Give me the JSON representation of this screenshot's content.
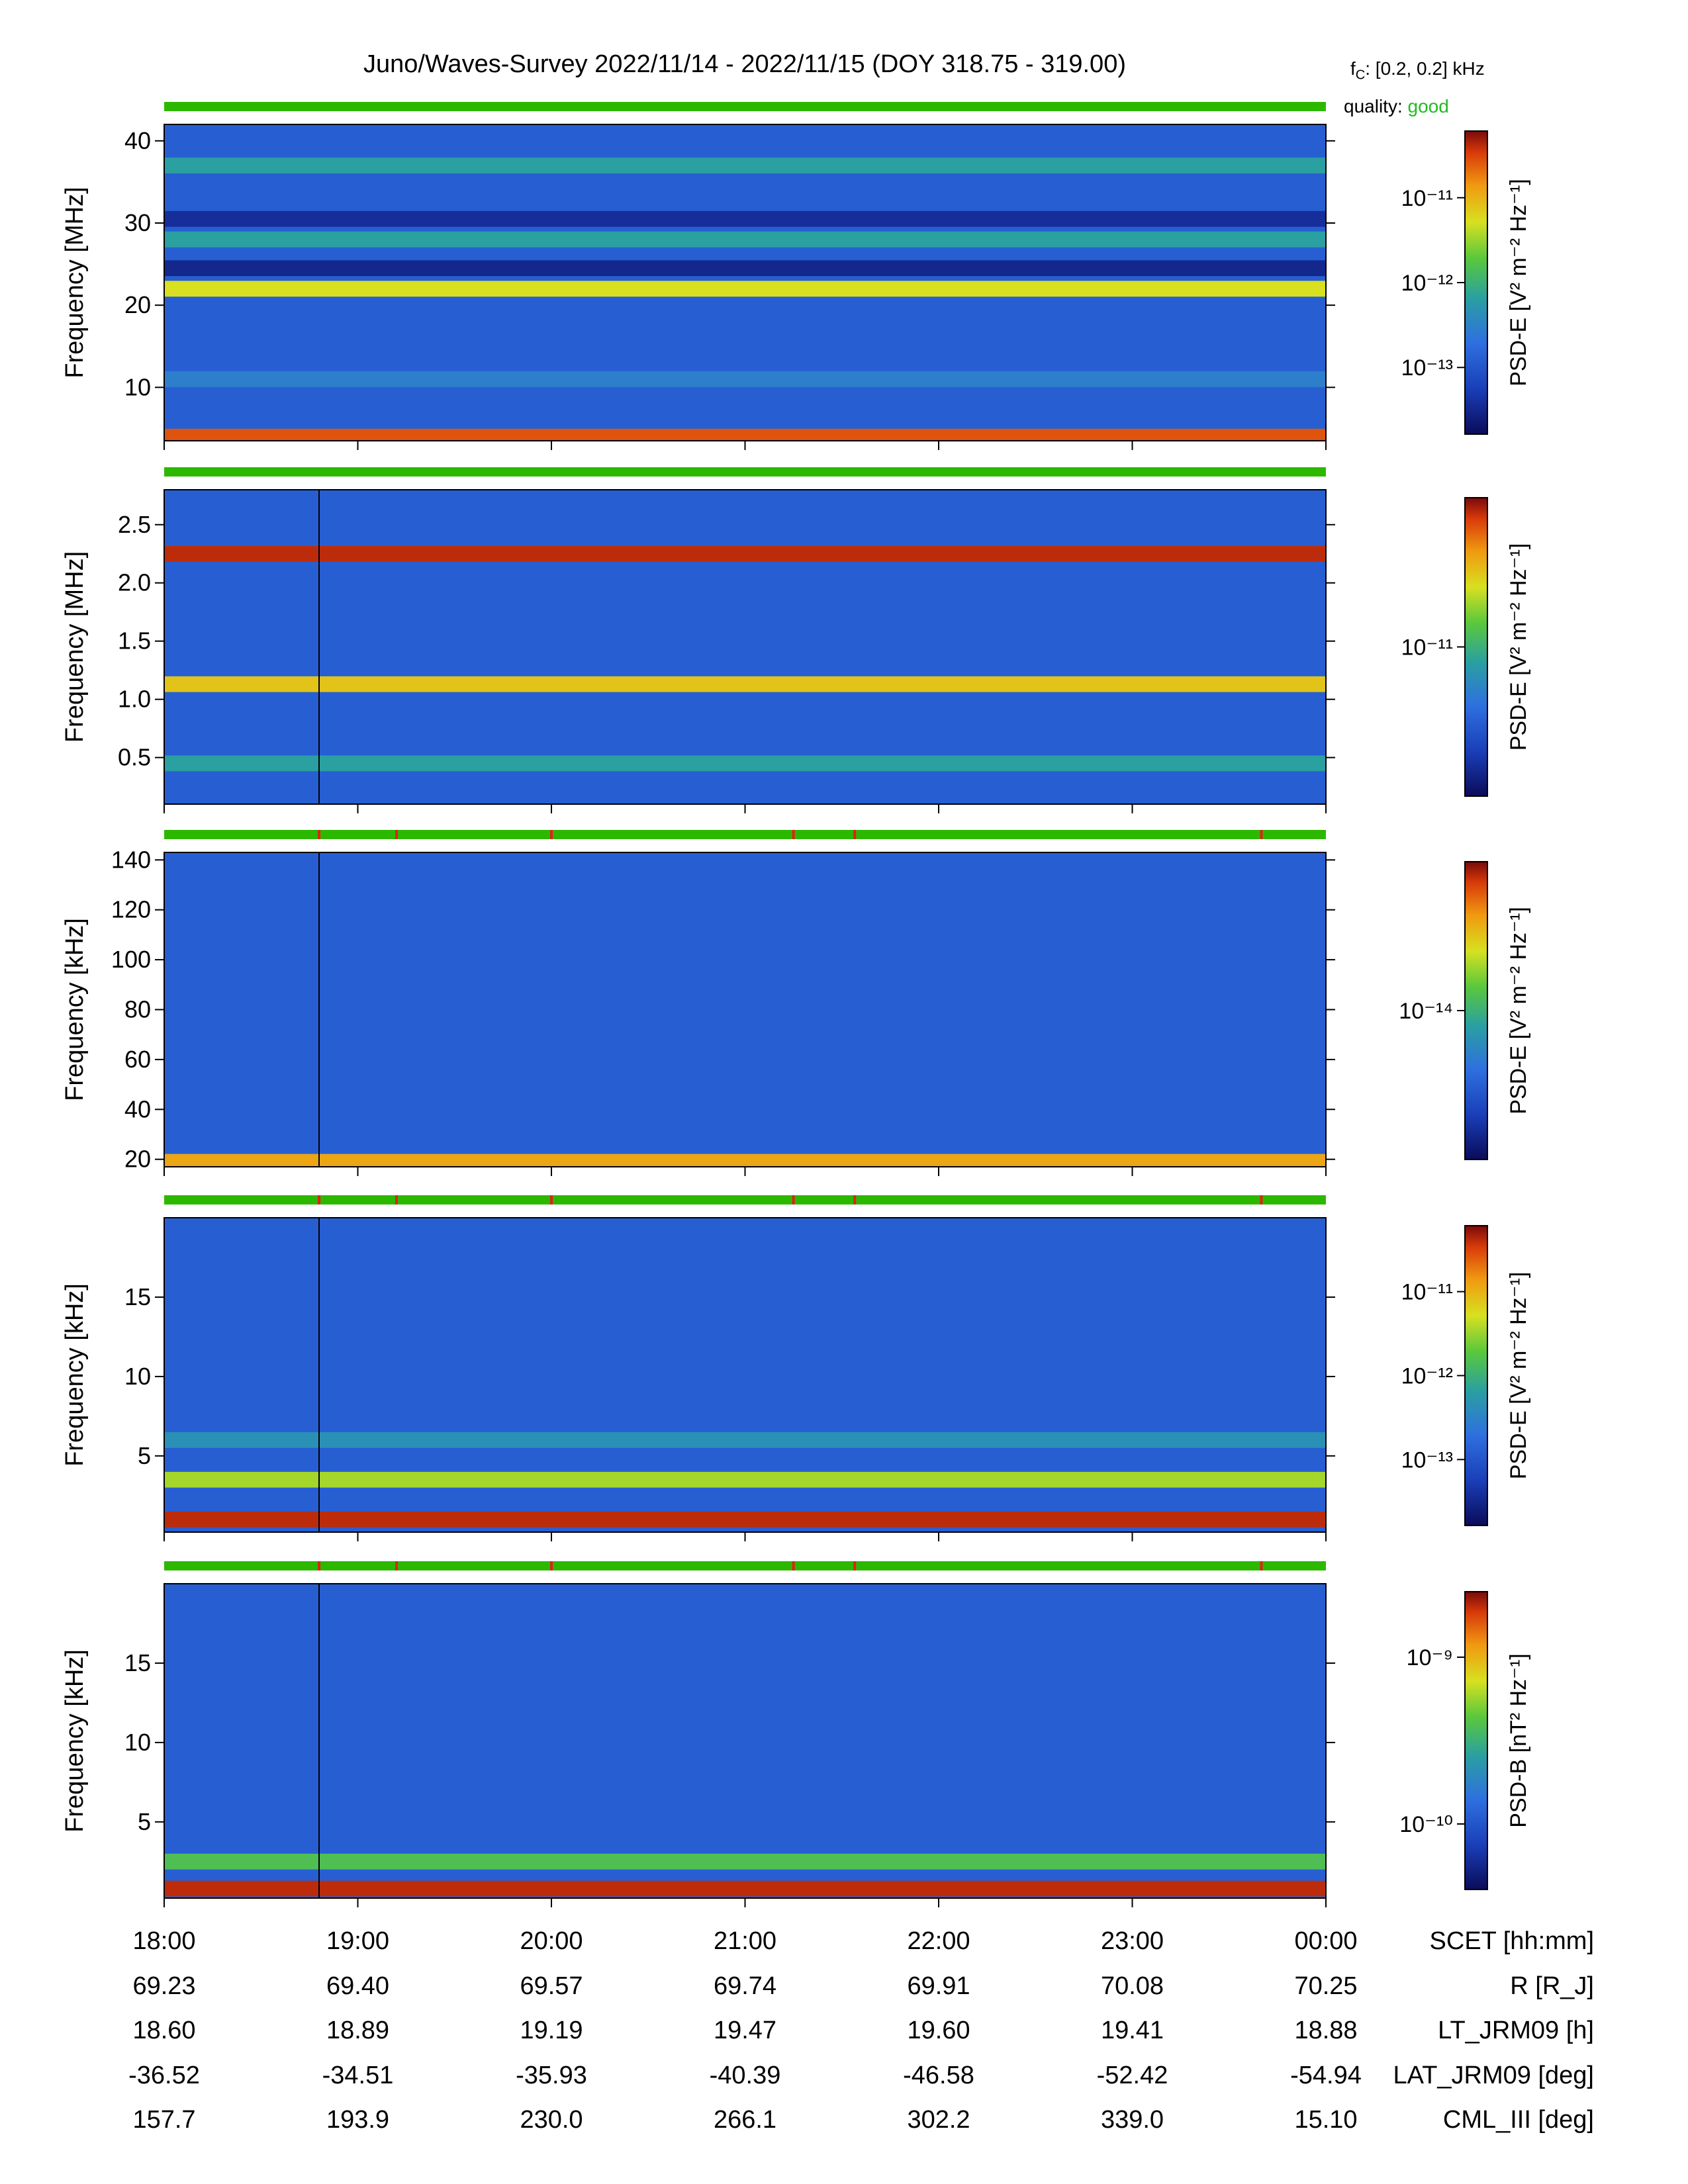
{
  "header": {
    "title": "Juno/Waves-Survey  2022/11/14 - 2022/11/15 (DOY 318.75 - 319.00)",
    "fc_label": "f",
    "fc_sub": "C",
    "fc_value": ": [0.2, 0.2] kHz",
    "quality_label": "quality: ",
    "quality_value": "good",
    "quality_color": "#22bb22"
  },
  "colors": {
    "quality_bar": "#2db800",
    "flag_red": "#e0201a",
    "cursor_line": "#000000"
  },
  "chart_data": {
    "type": "heatmap",
    "time_range": [
      "18:00",
      "00:00"
    ],
    "x_ticks": [
      "18:00",
      "19:00",
      "20:00",
      "21:00",
      "22:00",
      "23:00",
      "00:00"
    ],
    "panels": [
      {
        "ylabel": "Frequency [MHz]",
        "ylim": [
          3.5,
          42
        ],
        "yticks": [
          10,
          20,
          30,
          40
        ],
        "ytick_labels": [
          "10",
          "20",
          "30",
          "40"
        ],
        "colorbar_label": "PSD-E [V² m⁻² Hz⁻¹]",
        "colorbar_ticks": [
          "10⁻¹¹",
          "10⁻¹²",
          "10⁻¹³"
        ],
        "bands": [
          {
            "freq": 4,
            "level": 0.9
          },
          {
            "freq": 11,
            "level": 0.35
          },
          {
            "freq": 22,
            "level": 0.7
          },
          {
            "freq": 24.5,
            "level": 0.08
          },
          {
            "freq": 28,
            "level": 0.45
          },
          {
            "freq": 30.5,
            "level": 0.1
          },
          {
            "freq": 37,
            "level": 0.45
          }
        ],
        "red_flags": []
      },
      {
        "ylabel": "Frequency [MHz]",
        "ylim": [
          0.1,
          2.8
        ],
        "yticks": [
          0.5,
          1.0,
          1.5,
          2.0,
          2.5
        ],
        "ytick_labels": [
          "0.5",
          "1.0",
          "1.5",
          "2.0",
          "2.5"
        ],
        "colorbar_label": "PSD-E [V² m⁻² Hz⁻¹]",
        "colorbar_ticks": [
          "10⁻¹¹"
        ],
        "bands": [
          {
            "freq": 2.25,
            "level": 0.95
          },
          {
            "freq": 1.13,
            "level": 0.75
          },
          {
            "freq": 0.45,
            "level": 0.45
          }
        ],
        "red_flags": []
      },
      {
        "ylabel": "Frequency [kHz]",
        "ylim": [
          17,
          143
        ],
        "yticks": [
          20,
          40,
          60,
          80,
          100,
          120,
          140
        ],
        "ytick_labels": [
          "20",
          "40",
          "60",
          "80",
          "100",
          "120",
          "140"
        ],
        "colorbar_label": "PSD-E [V² m⁻² Hz⁻¹]",
        "colorbar_ticks": [
          "10⁻¹⁴"
        ],
        "bands": [
          {
            "freq": 19,
            "level": 0.8
          }
        ],
        "red_flags": [
          "18:48",
          "19:12",
          "20:00",
          "21:15",
          "21:34",
          "23:40"
        ]
      },
      {
        "ylabel": "Frequency [kHz]",
        "ylim": [
          0.2,
          20
        ],
        "yticks": [
          5,
          10,
          15
        ],
        "ytick_labels": [
          "5",
          "10",
          "15"
        ],
        "colorbar_label": "PSD-E [V² m⁻² Hz⁻¹]",
        "colorbar_ticks": [
          "10⁻¹¹",
          "10⁻¹²",
          "10⁻¹³"
        ],
        "bands": [
          {
            "freq": 1,
            "level": 0.95
          },
          {
            "freq": 3.5,
            "level": 0.65
          },
          {
            "freq": 6,
            "level": 0.4
          }
        ],
        "red_flags": [
          "18:48",
          "19:12",
          "20:00",
          "21:15",
          "21:34",
          "23:40"
        ]
      },
      {
        "ylabel": "Frequency [kHz]",
        "ylim": [
          0.2,
          20
        ],
        "yticks": [
          5,
          10,
          15
        ],
        "ytick_labels": [
          "5",
          "10",
          "15"
        ],
        "colorbar_label": "PSD-B [nT² Hz⁻¹]",
        "colorbar_ticks": [
          "10⁻⁹",
          "10⁻¹⁰"
        ],
        "bands": [
          {
            "freq": 0.8,
            "level": 0.95
          },
          {
            "freq": 2.5,
            "level": 0.55
          }
        ],
        "red_flags": [
          "18:48",
          "19:12",
          "20:00",
          "21:15",
          "21:34",
          "23:40"
        ]
      }
    ],
    "ephemeris": {
      "labels": [
        "SCET [hh:mm]",
        "R [R_J]",
        "LT_JRM09 [h]",
        "LAT_JRM09 [deg]",
        "CML_III [deg]"
      ],
      "rows": [
        [
          "18:00",
          "19:00",
          "20:00",
          "21:00",
          "22:00",
          "23:00",
          "00:00"
        ],
        [
          "69.23",
          "69.40",
          "69.57",
          "69.74",
          "69.91",
          "70.08",
          "70.25"
        ],
        [
          "18.60",
          "18.89",
          "19.19",
          "19.47",
          "19.60",
          "19.41",
          "18.88"
        ],
        [
          "-36.52",
          "-34.51",
          "-35.93",
          "-40.39",
          "-46.58",
          "-52.42",
          "-54.94"
        ],
        [
          "157.7",
          "193.9",
          "230.0",
          "266.1",
          "302.2",
          "339.0",
          "15.10"
        ]
      ]
    }
  }
}
